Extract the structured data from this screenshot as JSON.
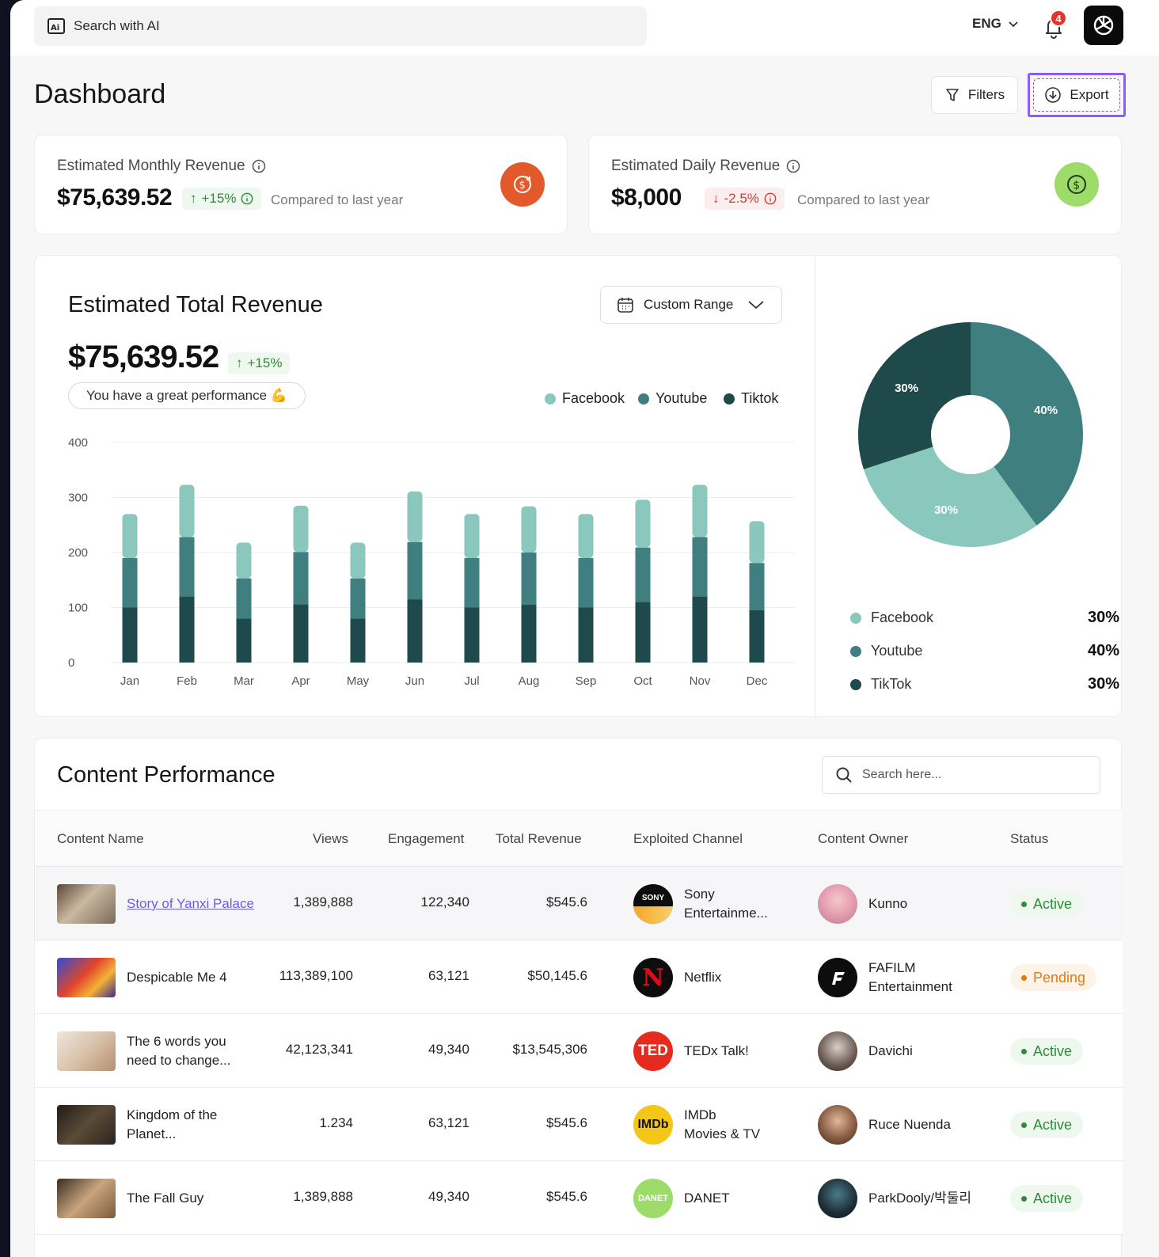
{
  "header": {
    "search_placeholder": "Search with AI",
    "language": "ENG",
    "notifications_count": "4"
  },
  "page": {
    "title": "Dashboard",
    "filters_label": "Filters",
    "export_label": "Export"
  },
  "kpis": [
    {
      "title": "Estimated Monthly Revenue",
      "value": "$75,639.52",
      "trend": "+15%",
      "trend_dir": "up",
      "compare": "Compared to last year",
      "icon": "refund-dollar-icon",
      "icon_color": "#e4592b"
    },
    {
      "title": "Estimated Daily Revenue",
      "value": "$8,000",
      "trend": "-2.5%",
      "trend_dir": "down",
      "compare": "Compared to last year",
      "icon": "dollar-circle-icon",
      "icon_color": "#9edc6a"
    }
  ],
  "revenue": {
    "title": "Estimated Total Revenue",
    "range_label": "Custom Range",
    "value": "$75,639.52",
    "trend": "+15%",
    "message": "You have a great performance 💪"
  },
  "colors": {
    "facebook": "#8ac7bd",
    "youtube": "#3f7f80",
    "tiktok": "#1f4a4b"
  },
  "chart_data": [
    {
      "type": "bar",
      "stacked": true,
      "categories": [
        "Jan",
        "Feb",
        "Mar",
        "Apr",
        "May",
        "Jun",
        "Jul",
        "Aug",
        "Sep",
        "Oct",
        "Nov",
        "Dec"
      ],
      "series": [
        {
          "name": "Tiktok",
          "values": [
            100,
            120,
            80,
            106,
            80,
            115,
            100,
            105,
            100,
            110,
            120,
            95
          ]
        },
        {
          "name": "Youtube",
          "values": [
            90,
            108,
            73,
            95,
            73,
            104,
            90,
            95,
            90,
            99,
            108,
            86
          ]
        },
        {
          "name": "Facebook",
          "values": [
            80,
            95,
            65,
            84,
            65,
            92,
            80,
            84,
            80,
            87,
            95,
            76
          ]
        }
      ],
      "y_ticks": [
        "400",
        "300",
        "200",
        "100",
        "0"
      ],
      "ylim": [
        0,
        400
      ],
      "legend": [
        "Facebook",
        "Youtube",
        "Tiktok"
      ],
      "legend_position": "top-right",
      "grid": true
    },
    {
      "type": "pie",
      "donut": true,
      "slices": [
        {
          "name": "Youtube",
          "value": 40,
          "label": "40%"
        },
        {
          "name": "Facebook",
          "value": 30,
          "label": "30%"
        },
        {
          "name": "TikTok",
          "value": 30,
          "label": "30%"
        }
      ],
      "legend": [
        {
          "name": "Facebook",
          "pct": "30%"
        },
        {
          "name": "Youtube",
          "pct": "40%"
        },
        {
          "name": "TikTok",
          "pct": "30%"
        }
      ]
    }
  ],
  "content": {
    "title": "Content Performance",
    "search_placeholder": "Search here...",
    "columns": [
      "Content Name",
      "Views",
      "Engagement",
      "Total Revenue",
      "Exploited Channel",
      "Content Owner",
      "Status"
    ],
    "rows": [
      {
        "name1": "Story of Yanxi Palace",
        "name2": "",
        "views": "1,389,888",
        "engagement": "122,340",
        "revenue": "$545.6",
        "channel1": "Sony",
        "channel2": "Entertainme...",
        "logo": "SONY",
        "owner1": "Kunno",
        "owner2": "",
        "status": "Active"
      },
      {
        "name1": "Despicable Me 4",
        "name2": "",
        "views": "113,389,100",
        "engagement": "63,121",
        "revenue": "$50,145.6",
        "channel1": "Netflix",
        "channel2": "",
        "logo": "N",
        "owner1": "FAFILM",
        "owner2": "Entertainment",
        "status": "Pending"
      },
      {
        "name1": "The 6 words you",
        "name2": "need to change...",
        "views": "42,123,341",
        "engagement": "49,340",
        "revenue": "$13,545,306",
        "channel1": "TEDx Talk!",
        "channel2": "",
        "logo": "TED",
        "owner1": "Davichi",
        "owner2": "",
        "status": "Active"
      },
      {
        "name1": "Kingdom of the",
        "name2": "Planet...",
        "views": "1.234",
        "engagement": "63,121",
        "revenue": "$545.6",
        "channel1": "IMDb",
        "channel2": "Movies & TV",
        "logo": "IMDb",
        "owner1": "Ruce Nuenda",
        "owner2": "",
        "status": "Active"
      },
      {
        "name1": "The Fall Guy",
        "name2": "",
        "views": "1,389,888",
        "engagement": "49,340",
        "revenue": "$545.6",
        "channel1": "DANET",
        "channel2": "",
        "logo": "DANET",
        "owner1": "ParkDooly/박둘리",
        "owner2": "",
        "status": "Active"
      }
    ]
  }
}
